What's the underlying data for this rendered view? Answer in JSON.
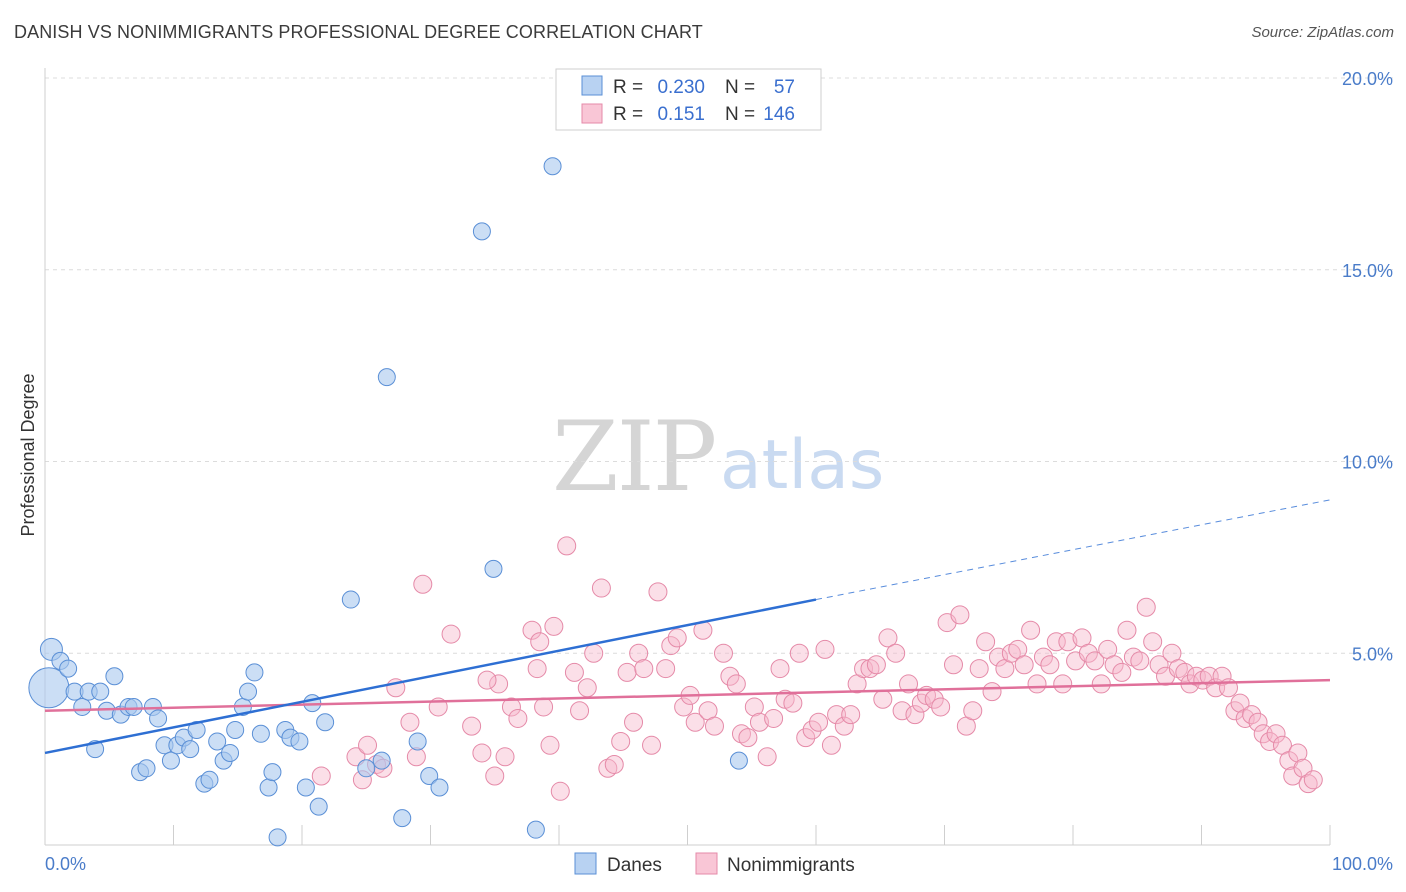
{
  "title": "DANISH VS NONIMMIGRANTS PROFESSIONAL DEGREE CORRELATION CHART",
  "source": "Source: ZipAtlas.com",
  "watermark": {
    "zip": "ZIP",
    "atlas": "atlas"
  },
  "colors": {
    "danes": "#a9c8ef",
    "danes_stroke": "#5a8fd6",
    "danes_line": "#2e6fd3",
    "nonimm": "#f6b8cb",
    "nonimm_stroke": "#e58aa8",
    "nonimm_line": "#e0709a"
  },
  "legend": {
    "r_label": "R =",
    "n_label": "N =",
    "rows": [
      {
        "r": "0.230",
        "n": "57"
      },
      {
        "r": "0.151",
        "n": "146"
      }
    ]
  },
  "bottom_legend": [
    "Danes",
    "Nonimmigrants"
  ],
  "chart_data": {
    "type": "scatter",
    "title": "DANISH VS NONIMMIGRANTS PROFESSIONAL DEGREE CORRELATION CHART",
    "xlabel": "",
    "ylabel": "Professional Degree",
    "xlim": [
      0,
      100
    ],
    "ylim": [
      0,
      20
    ],
    "x_ticks": [
      "0.0%",
      "100.0%"
    ],
    "y_ticks": [
      {
        "value": 5,
        "label": "5.0%"
      },
      {
        "value": 10,
        "label": "10.0%"
      },
      {
        "value": 15,
        "label": "15.0%"
      },
      {
        "value": 20,
        "label": "20.0%"
      }
    ],
    "grid": true,
    "series": [
      {
        "name": "Danes",
        "R": 0.23,
        "N": 57,
        "trend": {
          "x0": 0,
          "y0": 2.4,
          "x1": 60,
          "y1": 6.4,
          "dash_to_x": 100,
          "dash_to_y": 9.0
        },
        "points": [
          [
            0.3,
            4.1
          ],
          [
            0.5,
            5.1
          ],
          [
            1.2,
            4.8
          ],
          [
            1.8,
            4.6
          ],
          [
            2.3,
            4.0
          ],
          [
            2.9,
            3.6
          ],
          [
            3.4,
            4.0
          ],
          [
            3.9,
            2.5
          ],
          [
            4.3,
            4.0
          ],
          [
            4.8,
            3.5
          ],
          [
            5.4,
            4.4
          ],
          [
            5.9,
            3.4
          ],
          [
            6.5,
            3.6
          ],
          [
            6.9,
            3.6
          ],
          [
            7.4,
            1.9
          ],
          [
            7.9,
            2.0
          ],
          [
            8.4,
            3.6
          ],
          [
            8.8,
            3.3
          ],
          [
            9.3,
            2.6
          ],
          [
            9.8,
            2.2
          ],
          [
            10.3,
            2.6
          ],
          [
            10.8,
            2.8
          ],
          [
            11.3,
            2.5
          ],
          [
            11.8,
            3.0
          ],
          [
            12.4,
            1.6
          ],
          [
            12.8,
            1.7
          ],
          [
            13.4,
            2.7
          ],
          [
            13.9,
            2.2
          ],
          [
            14.4,
            2.4
          ],
          [
            14.8,
            3.0
          ],
          [
            15.4,
            3.6
          ],
          [
            15.8,
            4.0
          ],
          [
            16.3,
            4.5
          ],
          [
            16.8,
            2.9
          ],
          [
            17.4,
            1.5
          ],
          [
            17.7,
            1.9
          ],
          [
            18.1,
            0.2
          ],
          [
            18.7,
            3.0
          ],
          [
            19.1,
            2.8
          ],
          [
            19.8,
            2.7
          ],
          [
            20.3,
            1.5
          ],
          [
            20.8,
            3.7
          ],
          [
            21.3,
            1.0
          ],
          [
            21.8,
            3.2
          ],
          [
            23.8,
            6.4
          ],
          [
            25.0,
            2.0
          ],
          [
            26.2,
            2.2
          ],
          [
            26.6,
            12.2
          ],
          [
            27.8,
            0.7
          ],
          [
            29.0,
            2.7
          ],
          [
            29.9,
            1.8
          ],
          [
            30.7,
            1.5
          ],
          [
            34.0,
            16.0
          ],
          [
            34.9,
            7.2
          ],
          [
            38.2,
            0.4
          ],
          [
            39.5,
            17.7
          ],
          [
            54.0,
            2.2
          ]
        ]
      },
      {
        "name": "Nonimmigrants",
        "R": 0.151,
        "N": 146,
        "trend": {
          "x0": 0,
          "y0": 3.5,
          "x1": 100,
          "y1": 4.3
        },
        "points": [
          [
            21.5,
            1.8
          ],
          [
            24.2,
            2.3
          ],
          [
            24.7,
            1.7
          ],
          [
            25.1,
            2.6
          ],
          [
            25.8,
            2.1
          ],
          [
            26.3,
            2.0
          ],
          [
            27.3,
            4.1
          ],
          [
            28.4,
            3.2
          ],
          [
            28.9,
            2.3
          ],
          [
            29.4,
            6.8
          ],
          [
            30.6,
            3.6
          ],
          [
            31.6,
            5.5
          ],
          [
            33.2,
            3.1
          ],
          [
            34.0,
            2.4
          ],
          [
            35.0,
            1.8
          ],
          [
            35.3,
            4.2
          ],
          [
            35.8,
            2.3
          ],
          [
            36.3,
            3.6
          ],
          [
            36.8,
            3.3
          ],
          [
            37.9,
            5.6
          ],
          [
            38.3,
            4.6
          ],
          [
            38.8,
            3.6
          ],
          [
            39.3,
            2.6
          ],
          [
            39.6,
            5.7
          ],
          [
            40.1,
            1.4
          ],
          [
            40.6,
            7.8
          ],
          [
            41.2,
            4.5
          ],
          [
            41.6,
            3.5
          ],
          [
            42.2,
            4.1
          ],
          [
            42.7,
            5.0
          ],
          [
            43.3,
            6.7
          ],
          [
            43.8,
            2.0
          ],
          [
            44.3,
            2.1
          ],
          [
            44.8,
            2.7
          ],
          [
            45.3,
            4.5
          ],
          [
            45.8,
            3.2
          ],
          [
            46.2,
            5.0
          ],
          [
            46.6,
            4.6
          ],
          [
            47.2,
            2.6
          ],
          [
            47.7,
            6.6
          ],
          [
            48.3,
            4.6
          ],
          [
            48.7,
            5.2
          ],
          [
            49.2,
            5.4
          ],
          [
            49.7,
            3.6
          ],
          [
            50.2,
            3.9
          ],
          [
            50.6,
            3.2
          ],
          [
            51.2,
            5.6
          ],
          [
            51.6,
            3.5
          ],
          [
            52.1,
            3.1
          ],
          [
            52.8,
            5.0
          ],
          [
            53.3,
            4.4
          ],
          [
            53.8,
            4.2
          ],
          [
            54.2,
            2.9
          ],
          [
            54.7,
            2.8
          ],
          [
            55.2,
            3.6
          ],
          [
            55.6,
            3.2
          ],
          [
            56.2,
            2.3
          ],
          [
            56.7,
            3.3
          ],
          [
            57.2,
            4.6
          ],
          [
            57.6,
            3.8
          ],
          [
            58.2,
            3.7
          ],
          [
            58.7,
            5.0
          ],
          [
            59.2,
            2.8
          ],
          [
            59.7,
            3.0
          ],
          [
            60.2,
            3.2
          ],
          [
            60.7,
            5.1
          ],
          [
            61.2,
            2.6
          ],
          [
            61.6,
            3.4
          ],
          [
            62.2,
            3.1
          ],
          [
            62.7,
            3.4
          ],
          [
            63.2,
            4.2
          ],
          [
            63.7,
            4.6
          ],
          [
            64.2,
            4.6
          ],
          [
            64.7,
            4.7
          ],
          [
            65.2,
            3.8
          ],
          [
            65.6,
            5.4
          ],
          [
            66.2,
            5.0
          ],
          [
            66.7,
            3.5
          ],
          [
            67.2,
            4.2
          ],
          [
            67.7,
            3.4
          ],
          [
            68.2,
            3.7
          ],
          [
            68.6,
            3.9
          ],
          [
            69.2,
            3.8
          ],
          [
            69.7,
            3.6
          ],
          [
            70.2,
            5.8
          ],
          [
            70.7,
            4.7
          ],
          [
            71.2,
            6.0
          ],
          [
            71.7,
            3.1
          ],
          [
            72.2,
            3.5
          ],
          [
            72.7,
            4.6
          ],
          [
            73.2,
            5.3
          ],
          [
            73.7,
            4.0
          ],
          [
            74.2,
            4.9
          ],
          [
            74.7,
            4.6
          ],
          [
            75.2,
            5.0
          ],
          [
            75.7,
            5.1
          ],
          [
            76.2,
            4.7
          ],
          [
            76.7,
            5.6
          ],
          [
            77.2,
            4.2
          ],
          [
            77.7,
            4.9
          ],
          [
            78.2,
            4.7
          ],
          [
            78.7,
            5.3
          ],
          [
            79.2,
            4.2
          ],
          [
            79.6,
            5.3
          ],
          [
            80.2,
            4.8
          ],
          [
            80.7,
            5.4
          ],
          [
            81.2,
            5.0
          ],
          [
            81.7,
            4.8
          ],
          [
            82.2,
            4.2
          ],
          [
            82.7,
            5.1
          ],
          [
            83.2,
            4.7
          ],
          [
            83.8,
            4.5
          ],
          [
            84.2,
            5.6
          ],
          [
            84.7,
            4.9
          ],
          [
            85.2,
            4.8
          ],
          [
            85.7,
            6.2
          ],
          [
            86.2,
            5.3
          ],
          [
            86.7,
            4.7
          ],
          [
            87.2,
            4.4
          ],
          [
            87.7,
            5.0
          ],
          [
            88.2,
            4.6
          ],
          [
            88.7,
            4.5
          ],
          [
            89.1,
            4.2
          ],
          [
            89.6,
            4.4
          ],
          [
            90.1,
            4.3
          ],
          [
            90.6,
            4.4
          ],
          [
            91.1,
            4.1
          ],
          [
            91.6,
            4.4
          ],
          [
            92.1,
            4.1
          ],
          [
            92.6,
            3.5
          ],
          [
            93.0,
            3.7
          ],
          [
            93.4,
            3.3
          ],
          [
            93.9,
            3.4
          ],
          [
            94.4,
            3.2
          ],
          [
            94.8,
            2.9
          ],
          [
            95.3,
            2.7
          ],
          [
            95.8,
            2.9
          ],
          [
            96.3,
            2.6
          ],
          [
            96.8,
            2.2
          ],
          [
            97.1,
            1.8
          ],
          [
            97.5,
            2.4
          ],
          [
            97.9,
            2.0
          ],
          [
            98.3,
            1.6
          ],
          [
            98.7,
            1.7
          ],
          [
            34.4,
            4.3
          ],
          [
            38.5,
            5.3
          ]
        ]
      }
    ]
  }
}
